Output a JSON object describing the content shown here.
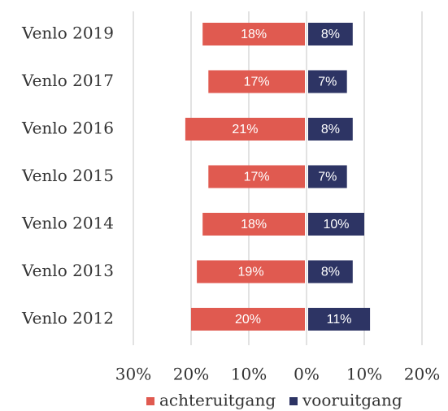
{
  "chart_data": {
    "type": "diverging_bar",
    "categories": [
      "Venlo 2019",
      "Venlo 2017",
      "Venlo 2016",
      "Venlo 2015",
      "Venlo 2014",
      "Venlo 2013",
      "Venlo 2012"
    ],
    "series": [
      {
        "name": "achteruitgang",
        "color": "#e05a50",
        "values": [
          -18,
          -17,
          -21,
          -17,
          -18,
          -19,
          -20
        ],
        "value_labels": [
          "18%",
          "17%",
          "21%",
          "17%",
          "18%",
          "19%",
          "20%"
        ]
      },
      {
        "name": "vooruitgang",
        "color": "#2d3464",
        "values": [
          8,
          7,
          8,
          7,
          10,
          8,
          11
        ],
        "value_labels": [
          "8%",
          "7%",
          "8%",
          "7%",
          "10%",
          "8%",
          "11%"
        ]
      }
    ],
    "xlim": [
      -30,
      20
    ],
    "xticks": [
      {
        "value": -30,
        "label": "30%"
      },
      {
        "value": -20,
        "label": "20%"
      },
      {
        "value": -10,
        "label": "10%"
      },
      {
        "value": 0,
        "label": "0%"
      },
      {
        "value": 10,
        "label": "10%"
      },
      {
        "value": 20,
        "label": "20%"
      }
    ],
    "grid": true
  }
}
